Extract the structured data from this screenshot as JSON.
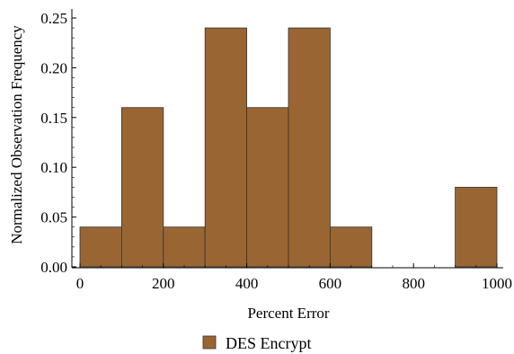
{
  "chart_data": {
    "type": "bar",
    "subtype": "histogram",
    "title": "",
    "xlabel": "Percent Error",
    "ylabel": "Normalized Observation Frequency",
    "xlim": [
      0,
      1000
    ],
    "ylim": [
      0,
      0.25
    ],
    "x_ticks": [
      {
        "value": 0,
        "label": "0"
      },
      {
        "value": 200,
        "label": "200"
      },
      {
        "value": 400,
        "label": "400"
      },
      {
        "value": 600,
        "label": "600"
      },
      {
        "value": 800,
        "label": "800"
      },
      {
        "value": 1000,
        "label": "1000"
      }
    ],
    "y_ticks": [
      {
        "value": 0,
        "label": "0.00"
      },
      {
        "value": 0.05,
        "label": "0.05"
      },
      {
        "value": 0.1,
        "label": "0.10"
      },
      {
        "value": 0.15,
        "label": "0.15"
      },
      {
        "value": 0.2,
        "label": "0.20"
      },
      {
        "value": 0.25,
        "label": "0.25"
      }
    ],
    "grid": false,
    "legend_position": "bottom-center",
    "series": [
      {
        "name": "DES Encrypt",
        "color": "#996633",
        "bins": [
          {
            "start": 0,
            "end": 100,
            "value": 0.04
          },
          {
            "start": 100,
            "end": 200,
            "value": 0.16
          },
          {
            "start": 200,
            "end": 300,
            "value": 0.04
          },
          {
            "start": 300,
            "end": 400,
            "value": 0.24
          },
          {
            "start": 400,
            "end": 500,
            "value": 0.16
          },
          {
            "start": 500,
            "end": 600,
            "value": 0.24
          },
          {
            "start": 600,
            "end": 700,
            "value": 0.04
          },
          {
            "start": 900,
            "end": 1000,
            "value": 0.08
          }
        ]
      }
    ]
  }
}
